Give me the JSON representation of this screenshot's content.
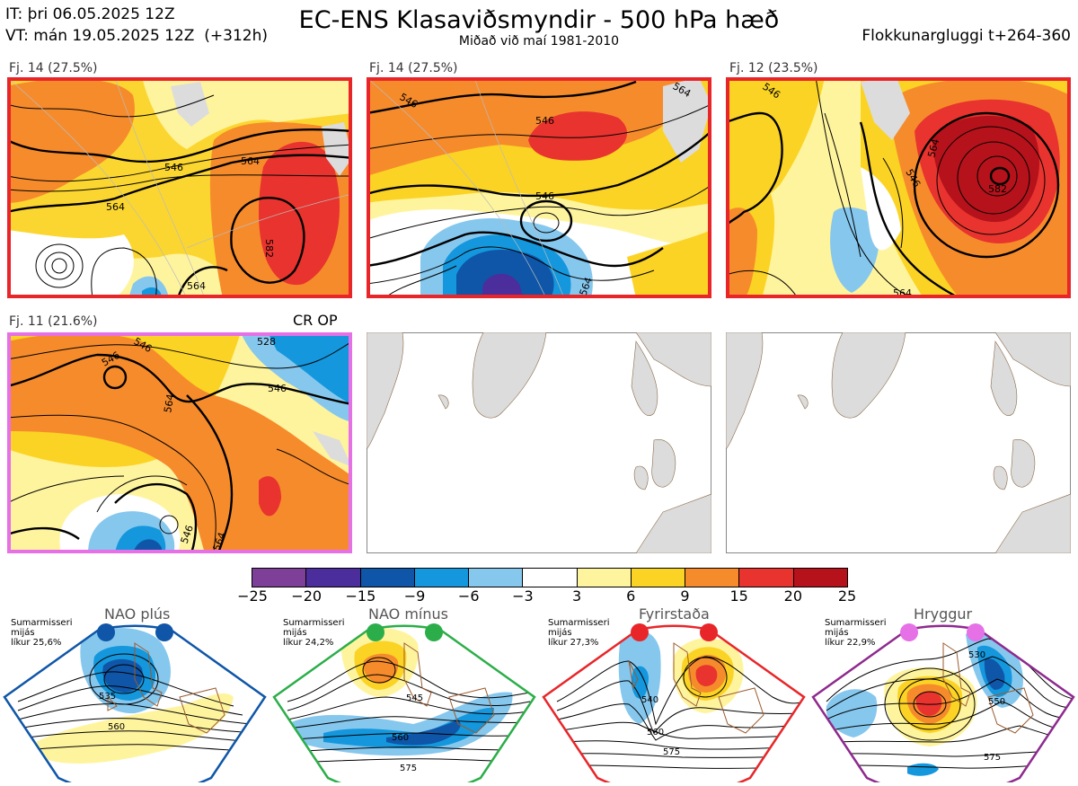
{
  "header": {
    "it_line": "IT: þri 06.05.2025 12Z",
    "vt_line": "VT: mán 19.05.2025 12Z  (+312h)",
    "title": "EC-ENS Klasaviðsmyndir - 500 hPa hæð",
    "subtitle": "Miðað við maí 1981-2010",
    "window": "Flokkunargluggi t+264-360"
  },
  "clusters": [
    {
      "label": "Fj. 14 (27.5%)",
      "border": "#e8262a",
      "contours": [
        "546",
        "564",
        "564",
        "582",
        "564"
      ]
    },
    {
      "label": "Fj. 14 (27.5%)",
      "border": "#e8262a",
      "contours": [
        "546",
        "546",
        "546",
        "564",
        "564"
      ]
    },
    {
      "label": "Fj. 12 (23.5%)",
      "border": "#e8262a",
      "contours": [
        "546",
        "546",
        "564",
        "582",
        "564"
      ]
    },
    {
      "label": "Fj. 11 (21.6%)",
      "border": "#e670e6",
      "contours": [
        "546",
        "546",
        "546",
        "564",
        "528",
        "564",
        "546"
      ]
    }
  ],
  "cr_op": "CR OP",
  "colorbar": {
    "ticks": [
      "−25",
      "−20",
      "−15",
      "−9",
      "−6",
      "−3",
      "3",
      "6",
      "9",
      "15",
      "20",
      "25"
    ],
    "colors": [
      "#7d3f98",
      "#4b2e9b",
      "#0f56a8",
      "#1497dc",
      "#86c7ee",
      "#ffffff",
      "#fff49e",
      "#fbd324",
      "#f68b2c",
      "#e8332e",
      "#b5121b"
    ]
  },
  "regimes": [
    {
      "name": "NAO plús",
      "season": "Sumarmisseri",
      "freq": "mijás",
      "prob": "líkur 25,6%",
      "border": "#0f56a8",
      "dots": "#0f56a8",
      "contours": [
        "535",
        "560"
      ]
    },
    {
      "name": "NAO mínus",
      "season": "Sumarmisseri",
      "freq": "mijás",
      "prob": "líkur 24,2%",
      "border": "#2bae49",
      "dots": "#2bae49",
      "contours": [
        "545",
        "560",
        "575"
      ]
    },
    {
      "name": "Fyrirstaða",
      "season": "Sumarmisseri",
      "freq": "mijás",
      "prob": "líkur 27,3%",
      "border": "#e8262a",
      "dots": "#e8262a",
      "contours": [
        "540",
        "560",
        "575"
      ]
    },
    {
      "name": "Hryggur",
      "season": "Sumarmisseri",
      "freq": "mijás",
      "prob": "líkur 22,9%",
      "border": "#8e2a8e",
      "dots": "#e670e6",
      "contours": [
        "530",
        "550",
        "575"
      ]
    }
  ]
}
